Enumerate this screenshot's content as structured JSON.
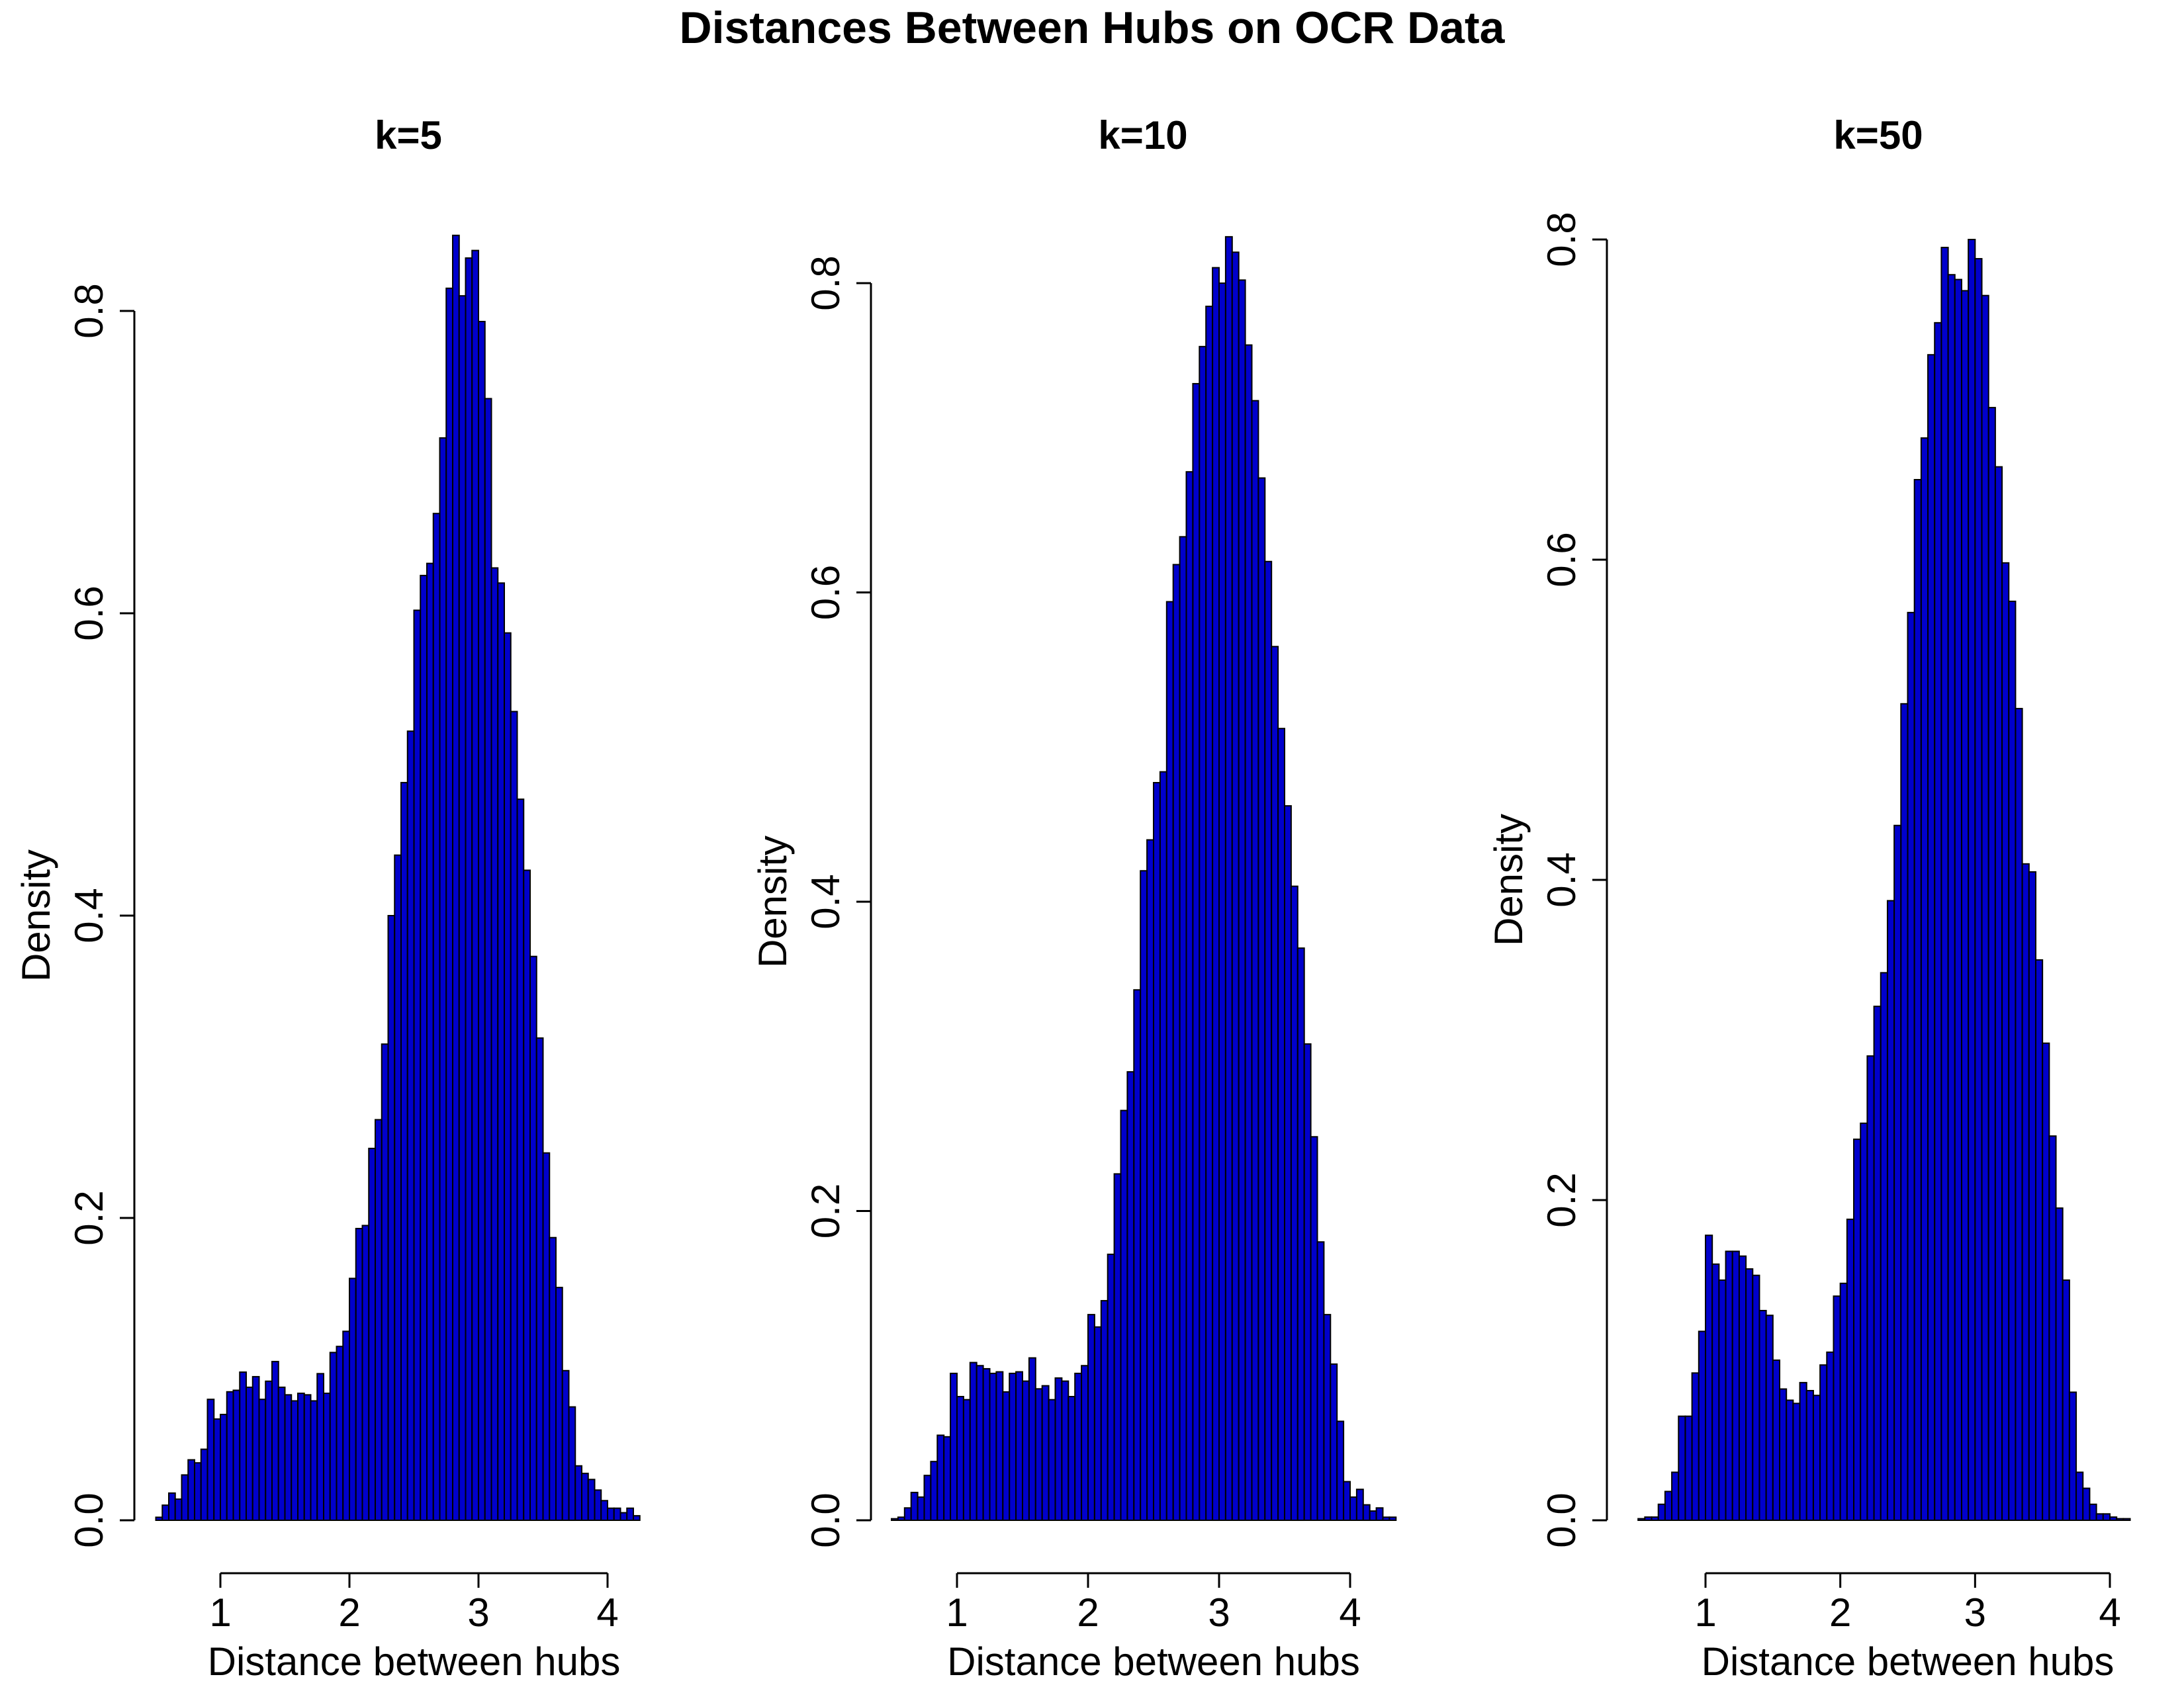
{
  "title": "Distances Between Hubs on OCR Data",
  "chart_data": [
    {
      "type": "histogram",
      "title": "k=5",
      "xlabel": "Distance between hubs",
      "ylabel": "Density",
      "x_ticks": [
        1,
        2,
        3,
        4
      ],
      "y_ticks": [
        0.0,
        0.2,
        0.4,
        0.6,
        0.8
      ],
      "y_tick_labels": [
        "0.0",
        "0.2",
        "0.4",
        "0.6",
        "0.8"
      ],
      "xlim": [
        0.5,
        4.4
      ],
      "ylim": [
        0,
        0.85
      ],
      "bin_start": 0.5,
      "bin_width": 0.05,
      "values": [
        0.002,
        0.01,
        0.018,
        0.014,
        0.03,
        0.04,
        0.038,
        0.047,
        0.08,
        0.067,
        0.07,
        0.085,
        0.086,
        0.098,
        0.088,
        0.095,
        0.08,
        0.092,
        0.105,
        0.088,
        0.083,
        0.079,
        0.084,
        0.083,
        0.079,
        0.097,
        0.084,
        0.111,
        0.115,
        0.125,
        0.16,
        0.193,
        0.195,
        0.246,
        0.265,
        0.315,
        0.4,
        0.44,
        0.488,
        0.522,
        0.602,
        0.625,
        0.633,
        0.666,
        0.716,
        0.815,
        0.85,
        0.81,
        0.835,
        0.84,
        0.793,
        0.742,
        0.63,
        0.62,
        0.587,
        0.535,
        0.477,
        0.43,
        0.373,
        0.319,
        0.243,
        0.187,
        0.154,
        0.099,
        0.075,
        0.036,
        0.031,
        0.027,
        0.02,
        0.013,
        0.008,
        0.008,
        0.005,
        0.008,
        0.003
      ],
      "color": "#0000cc"
    },
    {
      "type": "histogram",
      "title": "k=10",
      "xlabel": "Distance between hubs",
      "ylabel": "Density",
      "x_ticks": [
        1,
        2,
        3,
        4
      ],
      "y_ticks": [
        0.0,
        0.2,
        0.4,
        0.6,
        0.8
      ],
      "y_tick_labels": [
        "0.0",
        "0.2",
        "0.4",
        "0.6",
        "0.8"
      ],
      "xlim": [
        0.5,
        4.3
      ],
      "ylim": [
        0,
        0.83
      ],
      "bin_start": 0.5,
      "bin_width": 0.05,
      "values": [
        0.001,
        0.002,
        0.008,
        0.018,
        0.015,
        0.029,
        0.038,
        0.055,
        0.054,
        0.095,
        0.08,
        0.078,
        0.102,
        0.1,
        0.098,
        0.095,
        0.096,
        0.083,
        0.095,
        0.096,
        0.09,
        0.105,
        0.085,
        0.087,
        0.078,
        0.092,
        0.09,
        0.08,
        0.095,
        0.1,
        0.133,
        0.125,
        0.142,
        0.172,
        0.224,
        0.265,
        0.29,
        0.343,
        0.42,
        0.44,
        0.477,
        0.484,
        0.594,
        0.618,
        0.636,
        0.678,
        0.735,
        0.759,
        0.785,
        0.81,
        0.8,
        0.83,
        0.82,
        0.802,
        0.76,
        0.724,
        0.674,
        0.62,
        0.565,
        0.512,
        0.462,
        0.41,
        0.37,
        0.308,
        0.248,
        0.18,
        0.133,
        0.101,
        0.064,
        0.025,
        0.015,
        0.02,
        0.01,
        0.006,
        0.008,
        0.002,
        0.002
      ],
      "color": "#0000cc"
    },
    {
      "type": "histogram",
      "title": "k=50",
      "xlabel": "Distance between hubs",
      "ylabel": "Density",
      "x_ticks": [
        1,
        2,
        3,
        4
      ],
      "y_ticks": [
        0.0,
        0.2,
        0.4,
        0.6,
        0.8
      ],
      "y_tick_labels": [
        "0.0",
        "0.2",
        "0.4",
        "0.6",
        "0.8"
      ],
      "xlim": [
        0.5,
        4.2
      ],
      "ylim": [
        0,
        0.8
      ],
      "bin_start": 0.5,
      "bin_width": 0.05,
      "values": [
        0.001,
        0.002,
        0.002,
        0.01,
        0.018,
        0.03,
        0.065,
        0.065,
        0.092,
        0.118,
        0.178,
        0.16,
        0.15,
        0.168,
        0.168,
        0.165,
        0.157,
        0.153,
        0.131,
        0.128,
        0.1,
        0.082,
        0.075,
        0.073,
        0.086,
        0.081,
        0.078,
        0.097,
        0.105,
        0.14,
        0.148,
        0.188,
        0.238,
        0.248,
        0.29,
        0.321,
        0.342,
        0.387,
        0.434,
        0.51,
        0.567,
        0.65,
        0.676,
        0.728,
        0.748,
        0.795,
        0.778,
        0.775,
        0.768,
        0.8,
        0.788,
        0.765,
        0.695,
        0.658,
        0.598,
        0.574,
        0.507,
        0.41,
        0.405,
        0.35,
        0.298,
        0.24,
        0.195,
        0.15,
        0.08,
        0.03,
        0.02,
        0.01,
        0.004,
        0.004,
        0.002,
        0.001,
        0.001
      ],
      "color": "#0000cc"
    }
  ]
}
